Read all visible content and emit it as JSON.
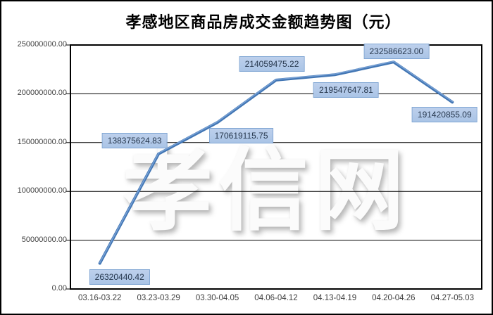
{
  "title": "孝感地区商品房成交金额趋势图（元）",
  "watermark": "孝信网",
  "colors": {
    "line": "#4276b4",
    "line_highlight": "#7fa7d9",
    "label_fill": "#aac4e6",
    "label_fill_light": "#bdd0ec",
    "label_border": "#7fa5d3",
    "label_text": "#27384e",
    "axis": "#000000",
    "tick_text": "#3f3f3f",
    "watermark_color": "#fbfbfb"
  },
  "chart_data": {
    "type": "line",
    "title": "孝感地区商品房成交金额趋势图（元）",
    "categories": [
      "03.16-03.22",
      "03.23-03.29",
      "03.30-04.05",
      "04.06-04.12",
      "04.13-04.19",
      "04.20-04.26",
      "04.27-05.03"
    ],
    "values": [
      26320440.42,
      138375624.83,
      170619115.75,
      214059475.22,
      219547647.81,
      232586623.0,
      191420855.09
    ],
    "value_labels": [
      "26320440.42",
      "138375624.83",
      "170619115.75",
      "214059475.22",
      "219547647.81",
      "232586623.00",
      "191420855.09"
    ],
    "xlabel": "",
    "ylabel": "",
    "ylim": [
      0,
      250000000
    ],
    "ytick_step": 50000000,
    "ytick_labels": [
      "0.00",
      "50000000.00",
      "100000000.00",
      "150000000.00",
      "200000000.00",
      "250000000.00"
    ],
    "grid": true,
    "legend": false
  }
}
